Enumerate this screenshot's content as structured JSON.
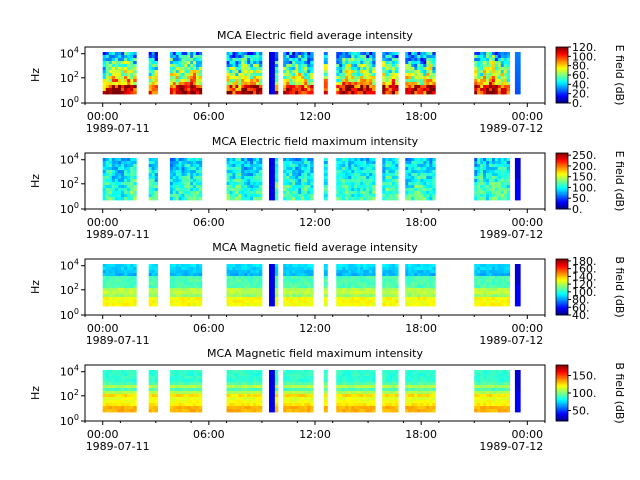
{
  "chart_data": [
    {
      "type": "heatmap",
      "title": "MCA  Electric field average intensity",
      "ylabel": "Hz",
      "y_ticks": [
        "10^4",
        "10^2",
        "10^0"
      ],
      "x_ticks": [
        "00:00",
        "06:00",
        "12:00",
        "18:00",
        "00:00"
      ],
      "x_date_labels": [
        "1989-07-11",
        "1989-07-12"
      ],
      "colorbar_label": "E field (dB)",
      "colorbar_ticks": [
        "120.",
        "100.",
        "80.",
        "60.",
        "40.",
        "20.",
        "0."
      ],
      "colorbar_range": [
        0,
        120
      ],
      "palette": "high-bottom",
      "data_segments_hours": [
        [
          0.0,
          1.9
        ],
        [
          2.6,
          3.1
        ],
        [
          3.8,
          5.6
        ],
        [
          7.0,
          9.0
        ],
        [
          9.4,
          9.9
        ],
        [
          10.2,
          11.9
        ],
        [
          12.5,
          12.7
        ],
        [
          13.2,
          15.4
        ],
        [
          15.8,
          16.7
        ],
        [
          17.1,
          18.8
        ],
        [
          21.0,
          23.0
        ],
        [
          23.3,
          23.6
        ]
      ]
    },
    {
      "type": "heatmap",
      "title": "MCA  Electric field maximum intensity",
      "ylabel": "Hz",
      "y_ticks": [
        "10^4",
        "10^2",
        "10^0"
      ],
      "x_ticks": [
        "00:00",
        "06:00",
        "12:00",
        "18:00",
        "00:00"
      ],
      "x_date_labels": [
        "1989-07-11",
        "1989-07-12"
      ],
      "colorbar_label": "E field (dB)",
      "colorbar_ticks": [
        "250.",
        "200.",
        "150.",
        "100.",
        "50.",
        "0."
      ],
      "colorbar_range": [
        0,
        260
      ],
      "palette": "mid-cool",
      "data_segments_hours": [
        [
          0.0,
          1.9
        ],
        [
          2.6,
          3.1
        ],
        [
          3.8,
          5.6
        ],
        [
          7.0,
          9.0
        ],
        [
          9.4,
          9.9
        ],
        [
          10.2,
          11.9
        ],
        [
          12.5,
          12.7
        ],
        [
          13.2,
          15.4
        ],
        [
          15.8,
          16.7
        ],
        [
          17.1,
          18.8
        ],
        [
          21.0,
          23.0
        ],
        [
          23.3,
          23.6
        ]
      ]
    },
    {
      "type": "heatmap",
      "title": "MCA  Magnetic field average intensity",
      "ylabel": "Hz",
      "y_ticks": [
        "10^4",
        "10^2",
        "10^0"
      ],
      "x_ticks": [
        "00:00",
        "06:00",
        "12:00",
        "18:00",
        "00:00"
      ],
      "x_date_labels": [
        "1989-07-11",
        "1989-07-12"
      ],
      "colorbar_label": "B field (dB)",
      "colorbar_ticks": [
        "180.",
        "160.",
        "140.",
        "120.",
        "100.",
        "80.",
        "60.",
        "40."
      ],
      "colorbar_range": [
        40,
        185
      ],
      "palette": "bands",
      "data_segments_hours": [
        [
          0.0,
          1.9
        ],
        [
          2.6,
          3.1
        ],
        [
          3.8,
          5.6
        ],
        [
          7.0,
          9.0
        ],
        [
          9.4,
          9.9
        ],
        [
          10.2,
          11.9
        ],
        [
          12.5,
          12.7
        ],
        [
          13.2,
          15.4
        ],
        [
          15.8,
          16.7
        ],
        [
          17.1,
          18.8
        ],
        [
          21.0,
          23.0
        ],
        [
          23.3,
          23.6
        ]
      ]
    },
    {
      "type": "heatmap",
      "title": "MCA  Magnetic field maximum intensity",
      "ylabel": "Hz",
      "y_ticks": [
        "10^4",
        "10^2",
        "10^0"
      ],
      "x_ticks": [
        "00:00",
        "06:00",
        "12:00",
        "18:00",
        "00:00"
      ],
      "x_date_labels": [
        "1989-07-11",
        "1989-07-12"
      ],
      "colorbar_label": "B field (dB)",
      "colorbar_ticks": [
        "150.",
        "100.",
        "50."
      ],
      "colorbar_range": [
        20,
        180
      ],
      "palette": "bands-warm",
      "data_segments_hours": [
        [
          0.0,
          1.9
        ],
        [
          2.6,
          3.1
        ],
        [
          3.8,
          5.6
        ],
        [
          7.0,
          9.0
        ],
        [
          9.4,
          9.9
        ],
        [
          10.2,
          11.9
        ],
        [
          12.5,
          12.7
        ],
        [
          13.2,
          15.4
        ],
        [
          15.8,
          16.7
        ],
        [
          17.1,
          18.8
        ],
        [
          21.0,
          23.0
        ],
        [
          23.3,
          23.6
        ]
      ]
    }
  ]
}
